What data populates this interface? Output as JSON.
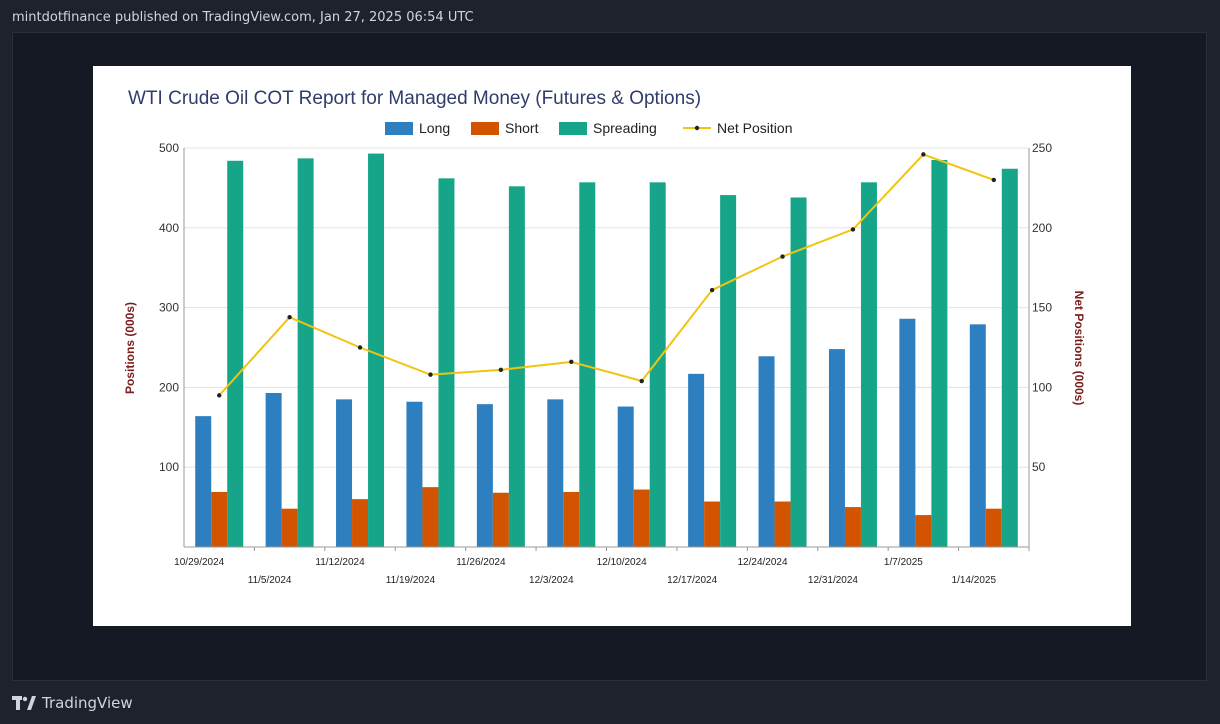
{
  "header": {
    "text": "mintdotfinance published on TradingView.com, Jan 27, 2025 06:54 UTC"
  },
  "footer": {
    "brand": "TradingView",
    "logo_icon": "tradingview-logo-icon"
  },
  "colors": {
    "long": "#2e7fbf",
    "short": "#d35400",
    "spreading": "#17a589",
    "net": "#f1c40f",
    "axis_title": "#7b1e1e"
  },
  "chart_data": {
    "type": "bar",
    "title": "WTI Crude Oil COT Report for Managed Money (Futures & Options)",
    "categories": [
      "10/29/2024",
      "11/5/2024",
      "11/12/2024",
      "11/19/2024",
      "11/26/2024",
      "12/3/2024",
      "12/10/2024",
      "12/17/2024",
      "12/24/2024",
      "12/31/2024",
      "1/7/2025",
      "1/14/2025"
    ],
    "series": [
      {
        "name": "Long",
        "type": "bar",
        "axis": "left",
        "values": [
          164,
          193,
          185,
          182,
          179,
          185,
          176,
          217,
          239,
          248,
          286,
          279
        ]
      },
      {
        "name": "Short",
        "type": "bar",
        "axis": "left",
        "values": [
          69,
          48,
          60,
          75,
          68,
          69,
          72,
          57,
          57,
          50,
          40,
          48
        ]
      },
      {
        "name": "Spreading",
        "type": "bar",
        "axis": "left",
        "values": [
          484,
          487,
          493,
          462,
          452,
          457,
          457,
          441,
          438,
          457,
          485,
          474
        ]
      },
      {
        "name": "Net Position",
        "type": "line",
        "axis": "right",
        "values": [
          95,
          144,
          125,
          108,
          111,
          116,
          104,
          161,
          182,
          199,
          246,
          230
        ]
      }
    ],
    "ylabel": "Positions (000s)",
    "y2label": "Net Positions (000s)",
    "ylim": [
      0,
      500
    ],
    "y2lim": [
      0,
      250
    ],
    "yticks": [
      100,
      200,
      300,
      400,
      500
    ],
    "y2ticks": [
      50,
      100,
      150,
      200,
      250
    ],
    "legend_position": "top-center",
    "grid": true
  }
}
